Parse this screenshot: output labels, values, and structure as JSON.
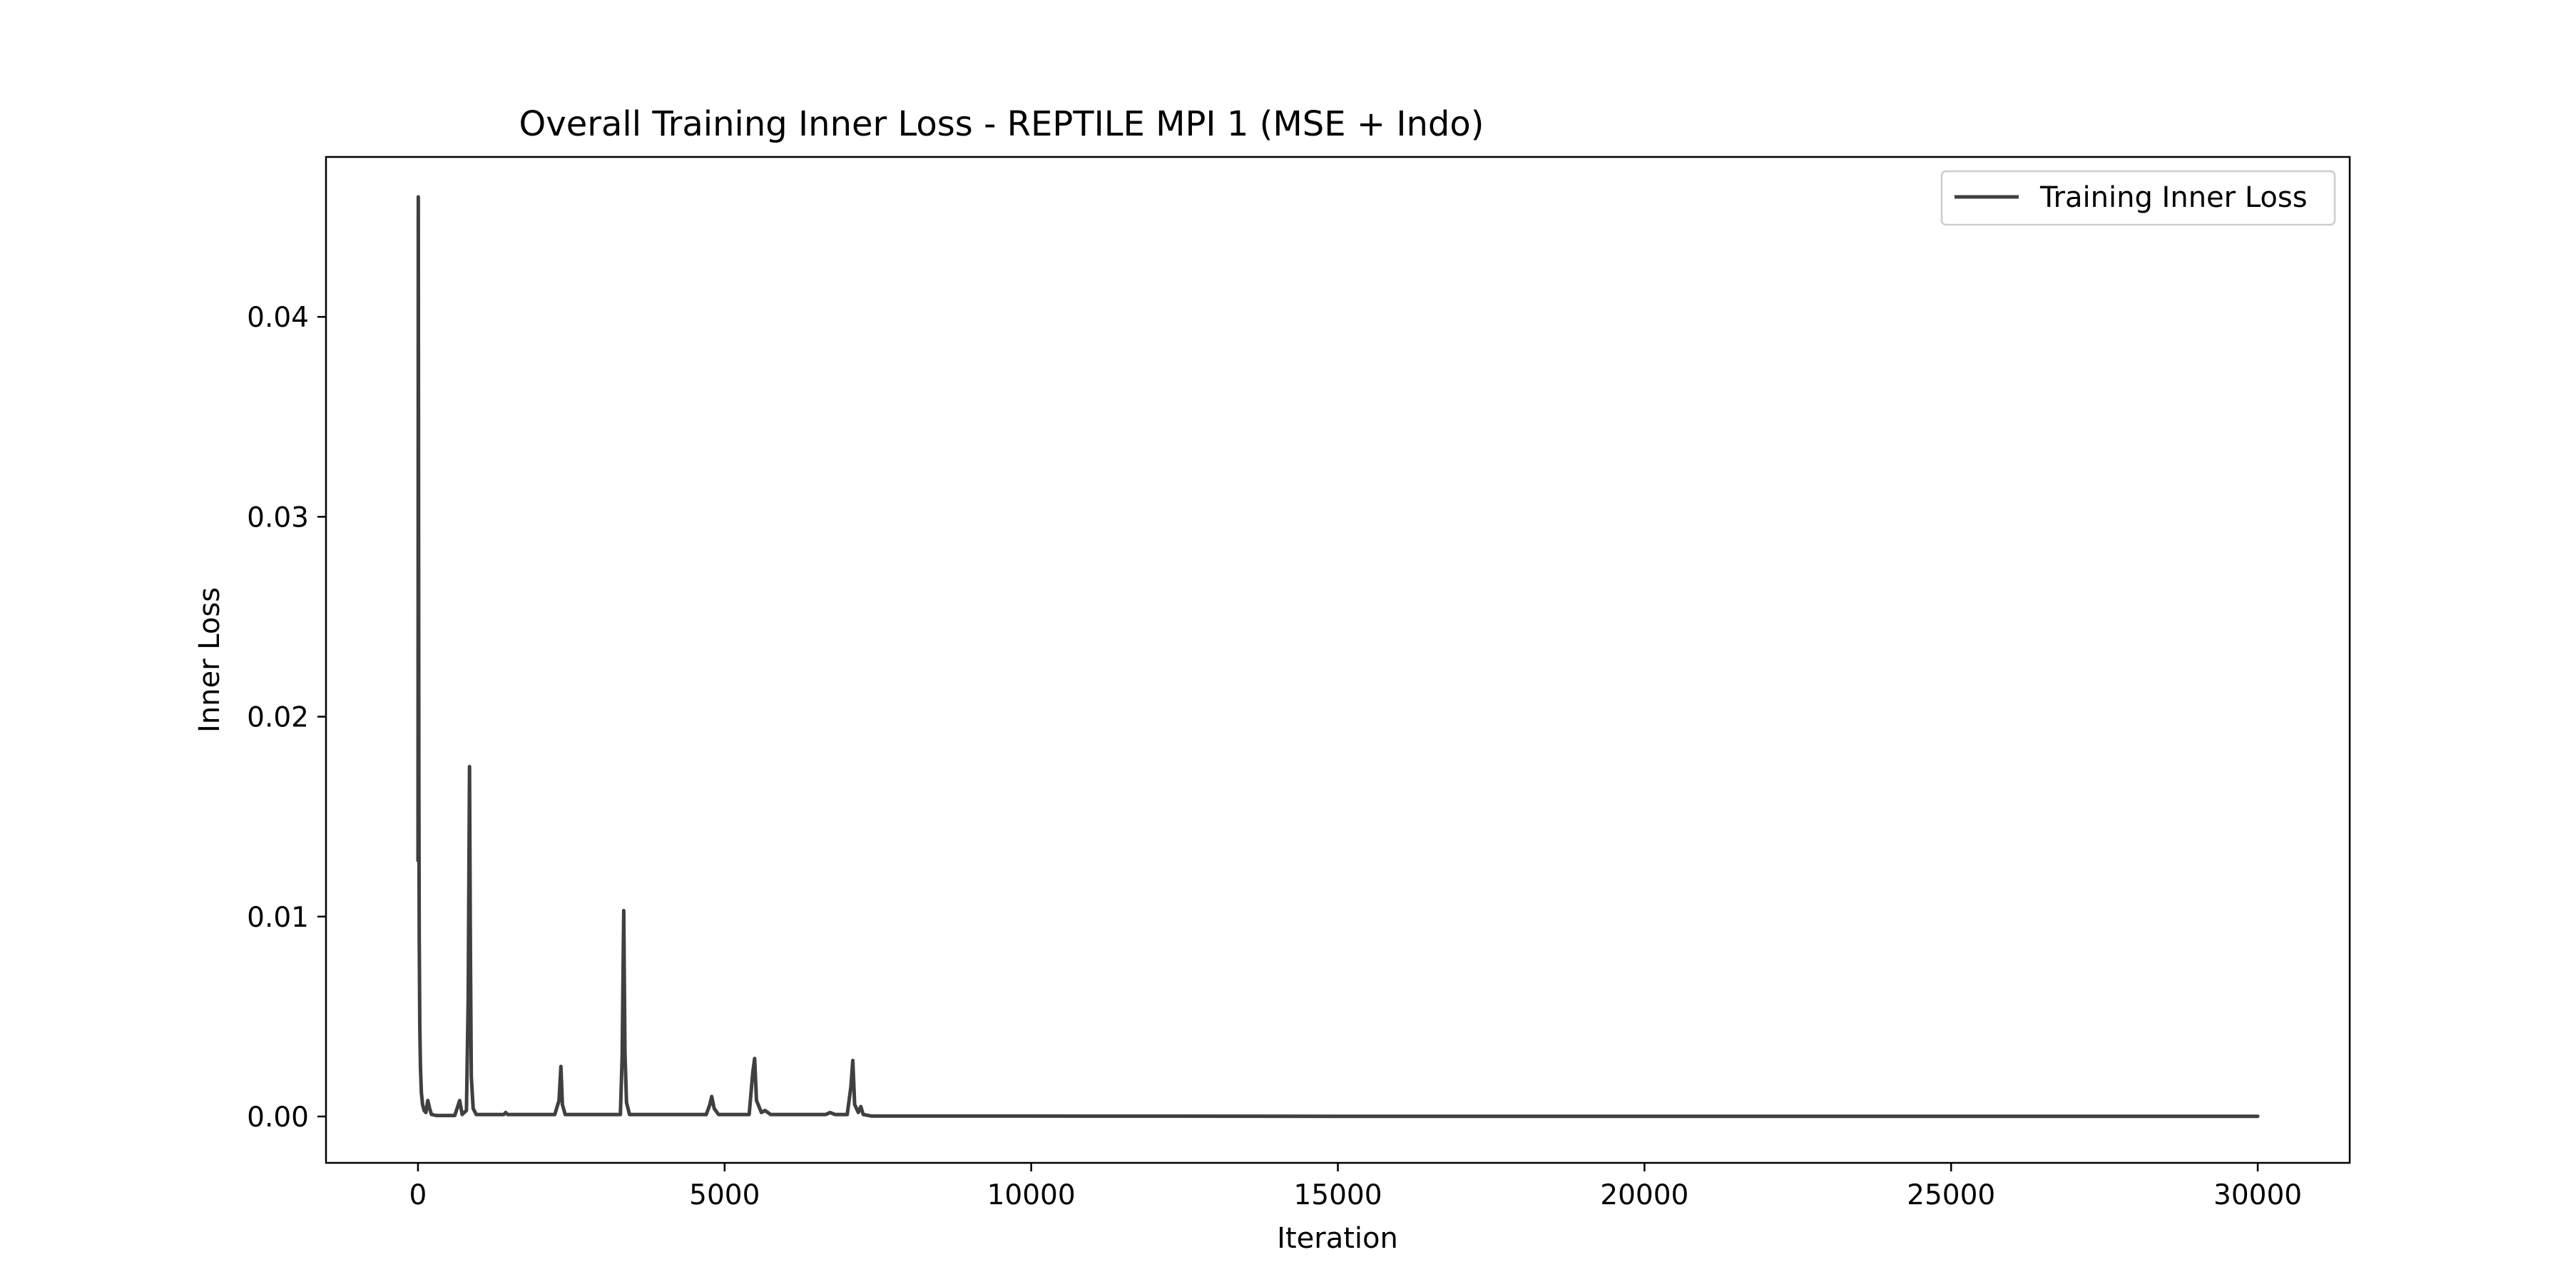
{
  "chart_data": {
    "type": "line",
    "title": "Overall Training Inner Loss - REPTILE MPI 1 (MSE + Indo)",
    "xlabel": "Iteration",
    "ylabel": "Inner Loss",
    "xlim": [
      -1500,
      31500
    ],
    "ylim": [
      -0.00232,
      0.048
    ],
    "x_ticks": [
      0,
      5000,
      10000,
      15000,
      20000,
      25000,
      30000
    ],
    "x_tick_labels": [
      "0",
      "5000",
      "10000",
      "15000",
      "20000",
      "25000",
      "30000"
    ],
    "y_ticks": [
      0.0,
      0.01,
      0.02,
      0.03,
      0.04
    ],
    "y_tick_labels": [
      "0.00",
      "0.01",
      "0.02",
      "0.03",
      "0.04"
    ],
    "grid": false,
    "legend_position": "top-right",
    "series": [
      {
        "name": "Training Inner Loss",
        "color": "#404040",
        "points": [
          [
            0,
            0.0128
          ],
          [
            5,
            0.046
          ],
          [
            10,
            0.0295
          ],
          [
            15,
            0.0165
          ],
          [
            20,
            0.009
          ],
          [
            30,
            0.0045
          ],
          [
            40,
            0.0025
          ],
          [
            55,
            0.0012
          ],
          [
            75,
            0.0006
          ],
          [
            100,
            0.0003
          ],
          [
            130,
            0.0002
          ],
          [
            160,
            0.0008
          ],
          [
            190,
            0.0004
          ],
          [
            220,
            0.0001
          ],
          [
            300,
            5e-05
          ],
          [
            600,
            5e-05
          ],
          [
            680,
            0.0008
          ],
          [
            720,
            0.0001
          ],
          [
            790,
            0.0003
          ],
          [
            820,
            0.006
          ],
          [
            840,
            0.0175
          ],
          [
            855,
            0.008
          ],
          [
            870,
            0.002
          ],
          [
            900,
            0.0004
          ],
          [
            950,
            0.0001
          ],
          [
            1400,
            0.0001
          ],
          [
            1430,
            0.0002
          ],
          [
            1460,
            0.0001
          ],
          [
            2230,
            0.0001
          ],
          [
            2300,
            0.0008
          ],
          [
            2330,
            0.0025
          ],
          [
            2355,
            0.0006
          ],
          [
            2400,
            0.0001
          ],
          [
            3300,
            0.0001
          ],
          [
            3330,
            0.003
          ],
          [
            3355,
            0.0103
          ],
          [
            3375,
            0.0032
          ],
          [
            3400,
            0.0007
          ],
          [
            3450,
            0.0001
          ],
          [
            4700,
            0.0001
          ],
          [
            4760,
            0.0006
          ],
          [
            4790,
            0.001
          ],
          [
            4830,
            0.0004
          ],
          [
            4900,
            0.0001
          ],
          [
            5400,
            0.0001
          ],
          [
            5460,
            0.0022
          ],
          [
            5490,
            0.0029
          ],
          [
            5520,
            0.0008
          ],
          [
            5600,
            0.0002
          ],
          [
            5660,
            0.0003
          ],
          [
            5750,
            0.0001
          ],
          [
            6650,
            0.0001
          ],
          [
            6720,
            0.0002
          ],
          [
            6800,
            0.0001
          ],
          [
            7000,
            0.0001
          ],
          [
            7060,
            0.0015
          ],
          [
            7090,
            0.0028
          ],
          [
            7120,
            0.0006
          ],
          [
            7180,
            0.0002
          ],
          [
            7220,
            0.0005
          ],
          [
            7260,
            0.0001
          ],
          [
            7400,
            2e-05
          ],
          [
            10000,
            2e-05
          ],
          [
            15000,
            1e-05
          ],
          [
            20000,
            1e-05
          ],
          [
            25000,
            1e-05
          ],
          [
            30000,
            1e-05
          ]
        ]
      }
    ]
  }
}
